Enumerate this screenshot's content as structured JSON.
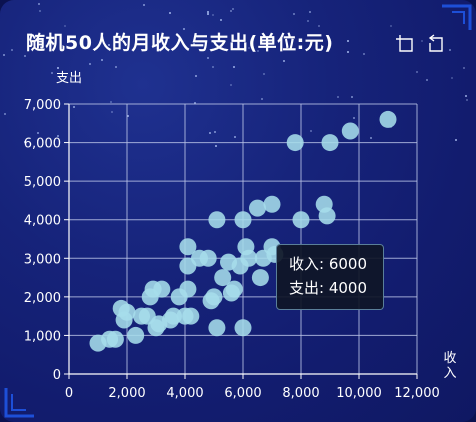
{
  "title": "随机50人的月收入与支出(单位:元)",
  "toolbar": {
    "icons": [
      "restore-icon",
      "refresh-icon"
    ]
  },
  "colors": {
    "point": "#a6ddea",
    "axis": "#ffffff",
    "grid": "#b8c2e6",
    "background": "#131d72",
    "accent": "#1d4fd8"
  },
  "chart_data": {
    "type": "scatter",
    "xlabel": "收入",
    "ylabel": "支出",
    "xlim": [
      0,
      12000
    ],
    "ylim": [
      0,
      7000
    ],
    "x_ticks": [
      "0",
      "2,000",
      "4,000",
      "6,000",
      "8,000",
      "10,000",
      "12,000"
    ],
    "y_ticks": [
      "0",
      "1,000",
      "2,000",
      "3,000",
      "4,000",
      "5,000",
      "6,000",
      "7,000"
    ],
    "grid": true,
    "points": [
      [
        1000,
        800
      ],
      [
        1400,
        900
      ],
      [
        1600,
        900
      ],
      [
        1800,
        1700
      ],
      [
        1900,
        1400
      ],
      [
        2000,
        1600
      ],
      [
        2300,
        1000
      ],
      [
        2500,
        1500
      ],
      [
        2700,
        1500
      ],
      [
        2800,
        2000
      ],
      [
        2900,
        2200
      ],
      [
        3000,
        1200
      ],
      [
        3100,
        1300
      ],
      [
        3200,
        2200
      ],
      [
        3500,
        1400
      ],
      [
        3600,
        1500
      ],
      [
        3800,
        2000
      ],
      [
        4000,
        1500
      ],
      [
        4100,
        3300
      ],
      [
        4100,
        2800
      ],
      [
        4100,
        2200
      ],
      [
        4200,
        1500
      ],
      [
        4500,
        3000
      ],
      [
        4800,
        3000
      ],
      [
        4900,
        1900
      ],
      [
        5000,
        2000
      ],
      [
        5100,
        4000
      ],
      [
        5100,
        1200
      ],
      [
        5300,
        2500
      ],
      [
        5500,
        2900
      ],
      [
        5600,
        2100
      ],
      [
        5700,
        2200
      ],
      [
        5900,
        2800
      ],
      [
        6000,
        4000
      ],
      [
        6000,
        1200
      ],
      [
        6100,
        3300
      ],
      [
        6200,
        3000
      ],
      [
        6500,
        4300
      ],
      [
        6600,
        2500
      ],
      [
        6700,
        3000
      ],
      [
        7000,
        4400
      ],
      [
        7000,
        3300
      ],
      [
        7100,
        3100
      ],
      [
        7800,
        6000
      ],
      [
        8000,
        4000
      ],
      [
        8800,
        4400
      ],
      [
        8900,
        4100
      ],
      [
        9000,
        6000
      ],
      [
        9700,
        6300
      ],
      [
        11000,
        6600
      ]
    ],
    "tooltip": {
      "x_label": "收入",
      "y_label": "支出",
      "x": "6000",
      "y": "4000"
    }
  }
}
